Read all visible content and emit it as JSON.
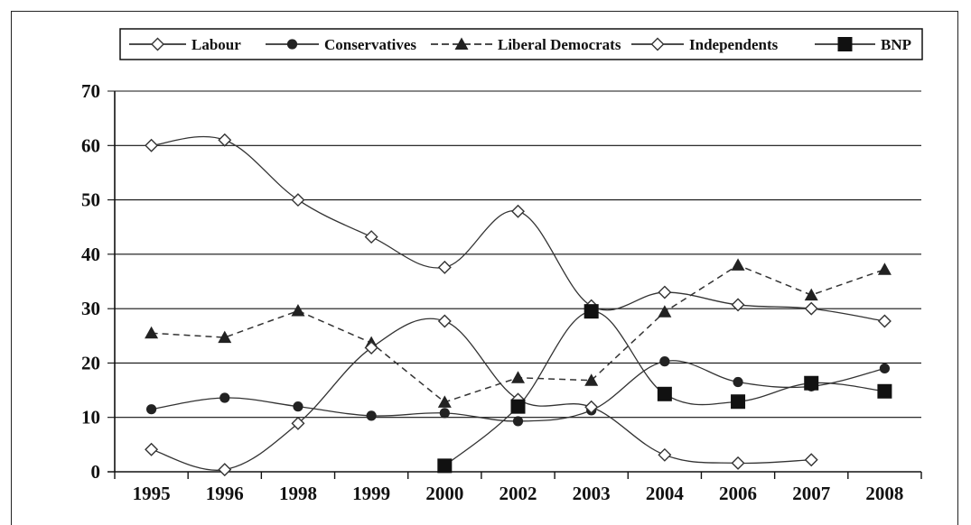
{
  "chart_data": {
    "type": "line",
    "title": "",
    "xlabel": "",
    "ylabel": "",
    "categories": [
      "1995",
      "1996",
      "1998",
      "1999",
      "2000",
      "2002",
      "2003",
      "2004",
      "2006",
      "2007",
      "2008"
    ],
    "ylim": [
      0,
      70
    ],
    "yticks": [
      "0",
      "10",
      "20",
      "30",
      "40",
      "50",
      "60",
      "70"
    ],
    "grid": "horizontal",
    "legend_position": "top",
    "series": [
      {
        "name": "Labour",
        "marker": "diamond-open",
        "dash": "solid",
        "color": "#333333",
        "values": [
          60,
          61,
          50,
          43.2,
          37.6,
          47.9,
          30.5,
          33,
          30.7,
          30,
          27.7
        ]
      },
      {
        "name": "Conservatives",
        "marker": "circle-filled",
        "dash": "solid",
        "color": "#333333",
        "values": [
          11.5,
          13.6,
          12,
          10.3,
          10.8,
          9.3,
          11.3,
          20.3,
          16.5,
          15.7,
          19
        ]
      },
      {
        "name": "Liberal Democrats",
        "marker": "triangle-filled",
        "dash": "dashed",
        "color": "#333333",
        "values": [
          25.5,
          24.7,
          29.6,
          23.7,
          12.8,
          17.3,
          16.8,
          29.4,
          38,
          32.5,
          37.2
        ]
      },
      {
        "name": "Independents",
        "marker": "diamond-open",
        "dash": "solid",
        "color": "#333333",
        "values": [
          4.1,
          0.4,
          8.9,
          22.8,
          27.7,
          13.3,
          11.9,
          3.1,
          1.6,
          2.2,
          null
        ]
      },
      {
        "name": "BNP",
        "marker": "square-filled",
        "dash": "solid",
        "color": "#333333",
        "values": [
          null,
          null,
          null,
          null,
          1.1,
          12,
          29.5,
          14.3,
          12.9,
          16.3,
          14.8
        ]
      }
    ]
  }
}
